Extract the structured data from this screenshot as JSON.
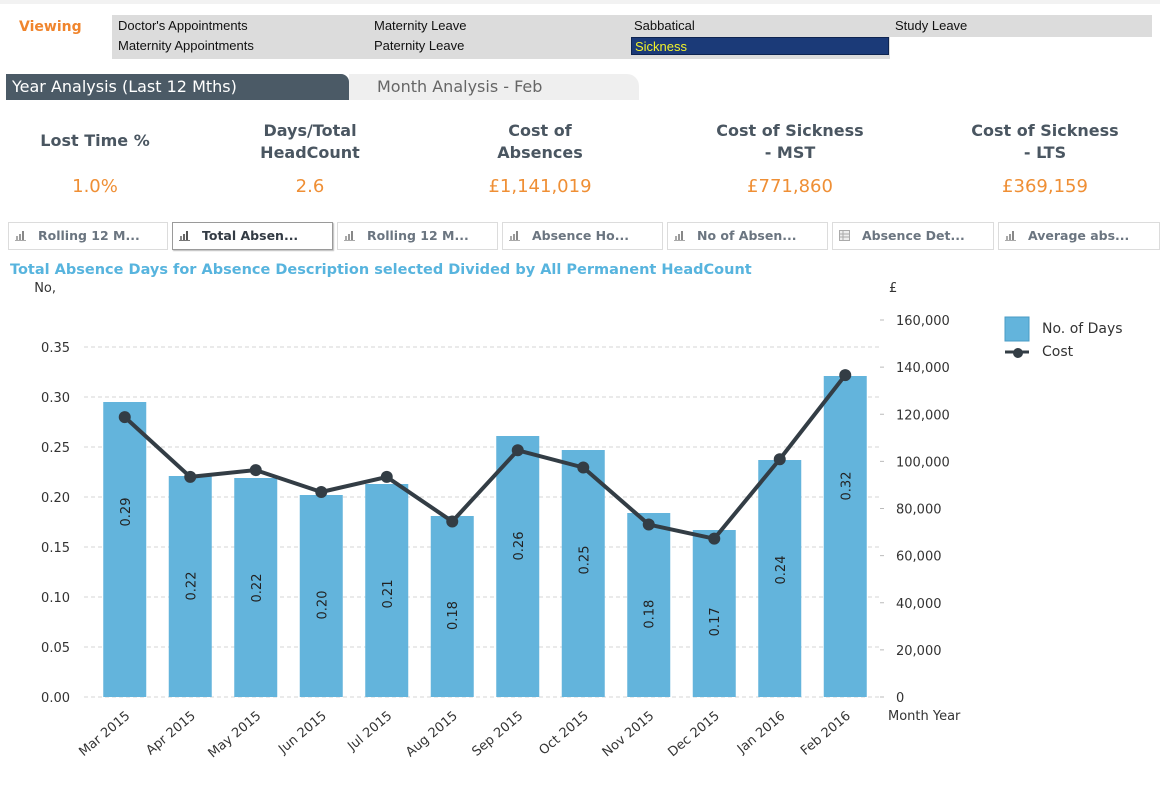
{
  "filter": {
    "label": "Viewing",
    "items": [
      {
        "label": "Doctor's Appointments",
        "selected": false
      },
      {
        "label": "Maternity Appointments",
        "selected": false
      },
      {
        "label": "Maternity Leave",
        "selected": false
      },
      {
        "label": "Paternity Leave",
        "selected": false
      },
      {
        "label": "Sabbatical",
        "selected": false
      },
      {
        "label": "Sickness",
        "selected": true
      },
      {
        "label": "Study Leave",
        "selected": false
      }
    ]
  },
  "tabs": [
    {
      "label": "Year Analysis (Last 12 Mths)",
      "active": true
    },
    {
      "label": "Month Analysis - Feb",
      "active": false
    }
  ],
  "kpis": [
    {
      "label_line1": "Lost Time %",
      "label_line2": "",
      "value": "1.0%"
    },
    {
      "label_line1": "Days/Total",
      "label_line2": "HeadCount",
      "value": "2.6"
    },
    {
      "label_line1": "Cost of",
      "label_line2": "Absences",
      "value": "£1,141,019"
    },
    {
      "label_line1": "Cost of Sickness",
      "label_line2": "- MST",
      "value": "£771,860"
    },
    {
      "label_line1": "Cost of Sickness",
      "label_line2": "- LTS",
      "value": "£369,159"
    }
  ],
  "chart_tabs": [
    {
      "label": "Rolling 12 M...",
      "icon": "bar-chart-icon",
      "active": false
    },
    {
      "label": "Total Absen...",
      "icon": "bar-chart-icon",
      "active": true
    },
    {
      "label": "Rolling 12 M...",
      "icon": "bar-chart-icon",
      "active": false
    },
    {
      "label": "Absence Ho...",
      "icon": "bar-chart-icon",
      "active": false
    },
    {
      "label": "No of Absen...",
      "icon": "bar-chart-icon",
      "active": false
    },
    {
      "label": "Absence Det...",
      "icon": "table-icon",
      "active": false
    },
    {
      "label": "Average abs...",
      "icon": "bar-chart-icon",
      "active": false
    }
  ],
  "colors": {
    "accent_orange": "#f0852d",
    "bar": "#63b4dc",
    "line": "#333d45",
    "title_blue": "#57b4de",
    "selected_bg": "#1b3a78",
    "selected_text": "#f2f22a"
  },
  "chart_data": {
    "type": "bar",
    "title": "Total Absence Days for Absence Description selected Divided by All Permanent HeadCount",
    "xlabel": "Month Year",
    "ylabel": "No,",
    "y2label": "£",
    "categories": [
      "Mar 2015",
      "Apr 2015",
      "May 2015",
      "Jun 2015",
      "Jul 2015",
      "Aug 2015",
      "Sep 2015",
      "Oct 2015",
      "Nov 2015",
      "Dec 2015",
      "Jan 2016",
      "Feb 2016"
    ],
    "series": [
      {
        "name": "No. of Days",
        "type": "bar",
        "axis": "left",
        "values": [
          0.295,
          0.221,
          0.219,
          0.202,
          0.213,
          0.181,
          0.261,
          0.247,
          0.184,
          0.167,
          0.237,
          0.321
        ],
        "labels": [
          "0.29",
          "0.22",
          "0.22",
          "0.20",
          "0.21",
          "0.18",
          "0.26",
          "0.25",
          "0.18",
          "0.17",
          "0.24",
          "0.32"
        ]
      },
      {
        "name": "Cost",
        "type": "line",
        "axis": "right",
        "values": [
          118800,
          93400,
          96300,
          87000,
          93400,
          74500,
          104700,
          97400,
          73200,
          67200,
          100900,
          136600
        ]
      }
    ],
    "ylim": [
      0,
      0.35
    ],
    "yticks": [
      "0.00",
      "0.05",
      "0.10",
      "0.15",
      "0.20",
      "0.25",
      "0.30",
      "0.35"
    ],
    "y2lim": [
      0,
      160000
    ],
    "y2ticks": [
      "0",
      "20,000",
      "40,000",
      "60,000",
      "80,000",
      "100,000",
      "120,000",
      "140,000",
      "160,000"
    ],
    "grid": true,
    "legend": "top-right"
  }
}
